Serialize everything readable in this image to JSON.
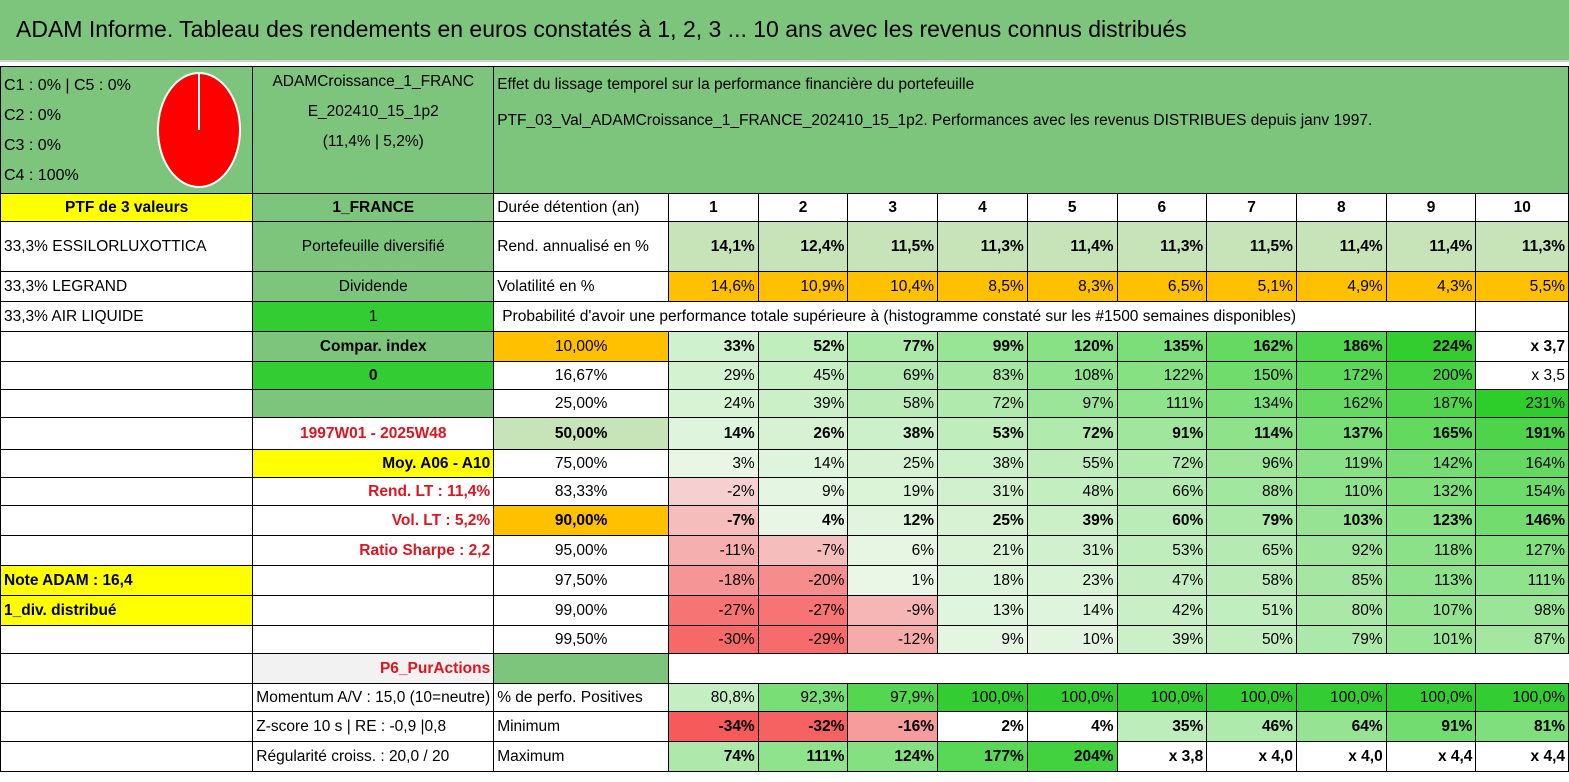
{
  "title": "ADAM Informe. Tableau des rendements en euros constatés à 1, 2, 3 ... 10 ans avec les revenus connus distribués",
  "composition": [
    "C1 : 0% | C5 : 0%",
    "C2 : 0%",
    "C3 : 0%",
    "C4 : 100%"
  ],
  "pie_color": "#ff0000",
  "fund": {
    "line1": "ADAMCroissance_1_FRANC",
    "line2": "E_202410_15_1p2",
    "line3": "(11,4% | 5,2%)"
  },
  "description": {
    "line1": "Effet du lissage temporel sur la performance financière du portefeuille",
    "line2": "PTF_03_Val_ADAMCroissance_1_FRANCE_202410_15_1p2. Performances avec les revenus DISTRIBUES depuis janv 1997."
  },
  "left_labels": [
    "PTF de 3 valeurs",
    "33,3% ESSILORLUXOTTICA",
    "33,3% LEGRAND",
    "33,3% AIR LIQUIDE"
  ],
  "mid_labels": {
    "zone": "1_FRANCE",
    "type": "Portefeuille diversifié",
    "dividend_label": "Dividende",
    "dividend_value": "1",
    "compar_label": "Compar. index",
    "compar_value": "0",
    "period": "1997W01 - 2025W48",
    "moy": "Moy. A06 - A10",
    "rend_lt": "Rend. LT : 11,4%",
    "vol_lt": "Vol. LT : 5,2%",
    "sharpe": "Ratio Sharpe : 2,2",
    "note": "Note ADAM : 16,4",
    "div": "1_div. distribué",
    "category": "P6_PurActions",
    "momentum": "Momentum A/V : 15,0 (10=neutre)",
    "zscore": "Z-score 10 s | RE : -0,9 |0,8",
    "regularite": "Régularité croiss. : 20,0 / 20"
  },
  "duration_label": "Durée détention (an)",
  "years": [
    "1",
    "2",
    "3",
    "4",
    "5",
    "6",
    "7",
    "8",
    "9",
    "10"
  ],
  "rend_label": "Rend. annualisé en %",
  "rend": [
    "14,1%",
    "12,4%",
    "11,5%",
    "11,3%",
    "11,4%",
    "11,3%",
    "11,5%",
    "11,4%",
    "11,4%",
    "11,3%"
  ],
  "vol_label": "Volatilité en %",
  "vol": [
    "14,6%",
    "10,9%",
    "10,4%",
    "8,5%",
    "8,3%",
    "6,5%",
    "5,1%",
    "4,9%",
    "4,3%",
    "5,5%"
  ],
  "proba_title": "Probabilité d'avoir une performance totale supérieure à (histogramme constaté sur les #1500 semaines disponibles)",
  "proba_rows": [
    {
      "p": "10,00%",
      "v": [
        "33%",
        "52%",
        "77%",
        "99%",
        "120%",
        "135%",
        "162%",
        "186%",
        "224%",
        "x 3,7"
      ]
    },
    {
      "p": "16,67%",
      "v": [
        "29%",
        "45%",
        "69%",
        "83%",
        "108%",
        "122%",
        "150%",
        "172%",
        "200%",
        "x 3,5"
      ]
    },
    {
      "p": "25,00%",
      "v": [
        "24%",
        "39%",
        "58%",
        "72%",
        "97%",
        "111%",
        "134%",
        "162%",
        "187%",
        "231%"
      ]
    },
    {
      "p": "50,00%",
      "v": [
        "14%",
        "26%",
        "38%",
        "53%",
        "72%",
        "91%",
        "114%",
        "137%",
        "165%",
        "191%"
      ]
    },
    {
      "p": "75,00%",
      "v": [
        "3%",
        "14%",
        "25%",
        "38%",
        "55%",
        "72%",
        "96%",
        "119%",
        "142%",
        "164%"
      ]
    },
    {
      "p": "83,33%",
      "v": [
        "-2%",
        "9%",
        "19%",
        "31%",
        "48%",
        "66%",
        "88%",
        "110%",
        "132%",
        "154%"
      ]
    },
    {
      "p": "90,00%",
      "v": [
        "-7%",
        "4%",
        "12%",
        "25%",
        "39%",
        "60%",
        "79%",
        "103%",
        "123%",
        "146%"
      ]
    },
    {
      "p": "95,00%",
      "v": [
        "-11%",
        "-7%",
        "6%",
        "21%",
        "31%",
        "53%",
        "65%",
        "92%",
        "118%",
        "127%"
      ]
    },
    {
      "p": "97,50%",
      "v": [
        "-18%",
        "-20%",
        "1%",
        "18%",
        "23%",
        "47%",
        "58%",
        "85%",
        "113%",
        "111%"
      ]
    },
    {
      "p": "99,00%",
      "v": [
        "-27%",
        "-27%",
        "-9%",
        "13%",
        "14%",
        "42%",
        "51%",
        "80%",
        "107%",
        "98%"
      ]
    },
    {
      "p": "99,50%",
      "v": [
        "-30%",
        "-29%",
        "-12%",
        "9%",
        "10%",
        "39%",
        "50%",
        "79%",
        "101%",
        "87%"
      ]
    }
  ],
  "pos_label": "% de perfo. Positives",
  "pos": [
    "80,8%",
    "92,3%",
    "97,9%",
    "100,0%",
    "100,0%",
    "100,0%",
    "100,0%",
    "100,0%",
    "100,0%",
    "100,0%"
  ],
  "min_label": "Minimum",
  "min": [
    "-34%",
    "-32%",
    "-16%",
    "2%",
    "4%",
    "35%",
    "46%",
    "64%",
    "91%",
    "81%"
  ],
  "max_label": "Maximum",
  "max": [
    "74%",
    "111%",
    "124%",
    "177%",
    "204%",
    "x 3,8",
    "x 4,0",
    "x 4,0",
    "x 4,4",
    "x 4,4"
  ]
}
